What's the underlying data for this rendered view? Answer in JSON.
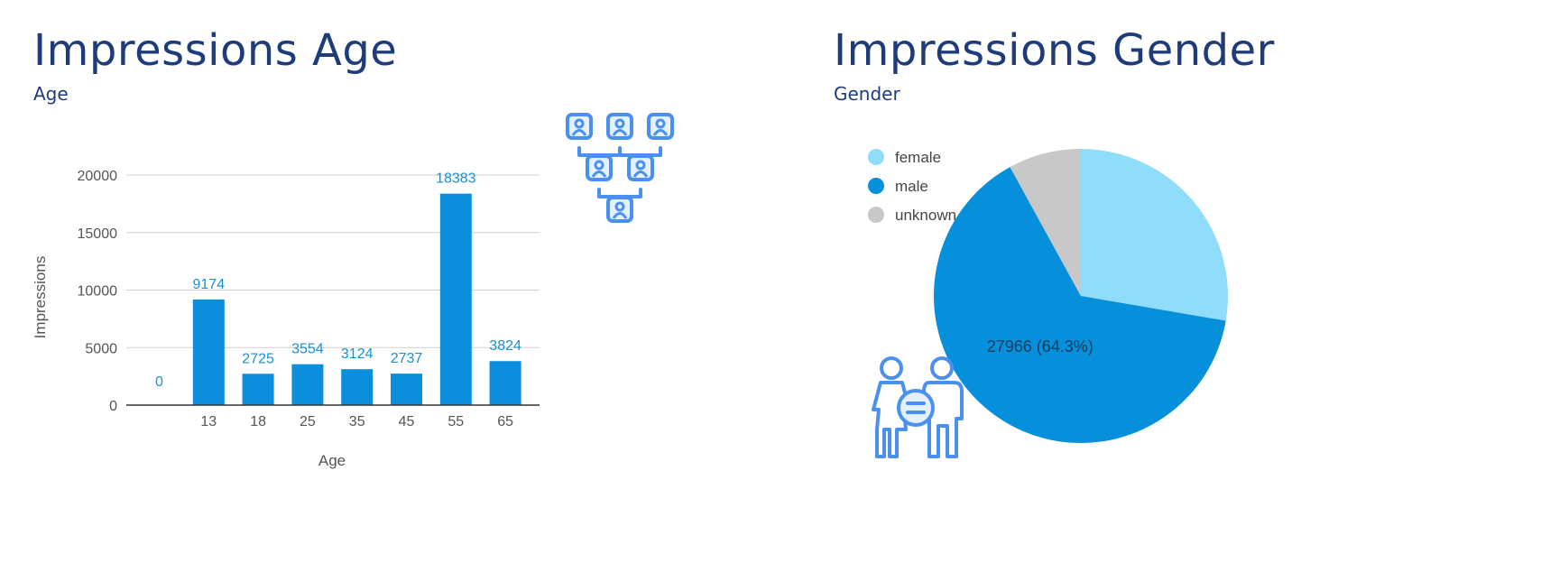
{
  "age_panel": {
    "title": "Impressions Age",
    "subtitle": "Age"
  },
  "gender_panel": {
    "title": "Impressions Gender",
    "subtitle": "Gender"
  },
  "colors": {
    "heading": "#1f3c7a",
    "bar": "#0b8fdd",
    "data_label": "#1a8fd6",
    "grid": "#d0d0d0",
    "female": "#8fdcfb",
    "male": "#0690db",
    "unknown": "#c8c8c8",
    "icon": "#4a90f0"
  },
  "icons": [
    "org-chart-icon",
    "gender-equality-icon"
  ],
  "chart_data": [
    {
      "type": "bar",
      "categories": [
        "",
        "13",
        "18",
        "25",
        "35",
        "45",
        "55",
        "65"
      ],
      "values": [
        0,
        9174,
        2725,
        3554,
        3124,
        2737,
        18383,
        3824
      ],
      "data_labels": [
        "0",
        "9174",
        "2725",
        "3554",
        "3124",
        "2737",
        "18383",
        "3824"
      ],
      "xlabel": "Age",
      "ylabel": "Impressions",
      "ylim": [
        0,
        20000
      ],
      "yticks": [
        0,
        5000,
        10000,
        15000,
        20000
      ],
      "ytick_labels": [
        "0",
        "5000",
        "10000",
        "15000",
        "20000"
      ],
      "grid": true,
      "legend": "none"
    },
    {
      "type": "pie",
      "labels": [
        "female",
        "male",
        "unknown"
      ],
      "percentages": [
        27.7,
        64.3,
        8.0
      ],
      "slice_labels": [
        "",
        "27966 (64.3%)",
        ""
      ],
      "legend": "left"
    }
  ]
}
